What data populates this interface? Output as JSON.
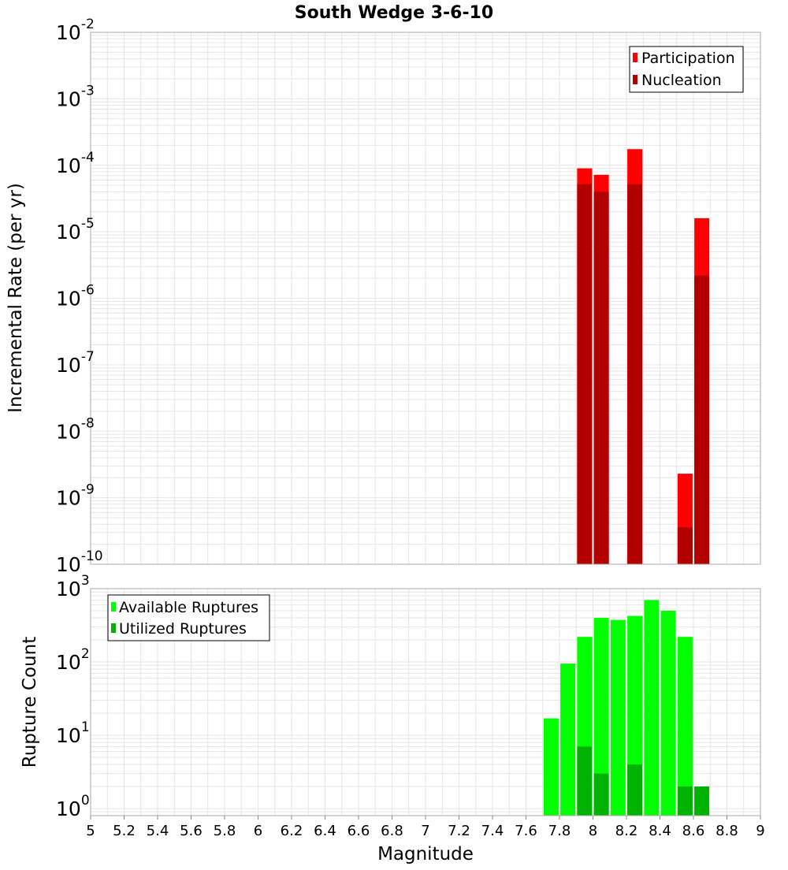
{
  "title": "South Wedge 3-6-10",
  "x_axis": {
    "label": "Magnitude",
    "range": [
      5,
      9
    ],
    "ticks": [
      5,
      5.2,
      5.4,
      5.6,
      5.8,
      6,
      6.2,
      6.4,
      6.6,
      6.8,
      7,
      7.2,
      7.4,
      7.6,
      7.8,
      8,
      8.2,
      8.4,
      8.6,
      8.8,
      9
    ],
    "tick_labels": [
      "5",
      "5.2",
      "5.4",
      "5.6",
      "5.8",
      "6",
      "6.2",
      "6.4",
      "6.6",
      "6.8",
      "7",
      "7.2",
      "7.4",
      "7.6",
      "7.8",
      "8",
      "8.2",
      "8.4",
      "8.6",
      "8.8",
      "9"
    ]
  },
  "colors": {
    "participation": "#ff0000",
    "nucleation": "#b20000",
    "available": "#00ff00",
    "utilized": "#00b200",
    "grid": "#e6e6e6",
    "frame": "#aaaaaa"
  },
  "chart_data": [
    {
      "type": "bar",
      "title": "South Wedge 3-6-10",
      "xlabel": "Magnitude",
      "ylabel": "Incremental Rate (per yr)",
      "yscale": "log",
      "xlim": [
        5,
        9
      ],
      "ylim": [
        1e-10,
        0.01
      ],
      "y_tick_exponents": [
        -10,
        -9,
        -8,
        -7,
        -6,
        -5,
        -4,
        -3,
        -2
      ],
      "legend": {
        "position": "top-right",
        "entries": [
          "Participation",
          "Nucleation"
        ]
      },
      "x": [
        7.95,
        8.05,
        8.25,
        8.55,
        8.65
      ],
      "series": [
        {
          "name": "Participation",
          "values": [
            9e-05,
            7.2e-05,
            0.000175,
            2.3e-09,
            1.6e-05
          ]
        },
        {
          "name": "Nucleation",
          "values": [
            5.2e-05,
            4e-05,
            5.2e-05,
            3.6e-10,
            2.2e-06
          ]
        }
      ]
    },
    {
      "type": "bar",
      "xlabel": "Magnitude",
      "ylabel": "Rupture Count",
      "yscale": "log",
      "xlim": [
        5,
        9
      ],
      "ylim": [
        0.8,
        1000
      ],
      "y_tick_exponents": [
        0,
        1,
        2,
        3
      ],
      "legend": {
        "position": "top-left",
        "entries": [
          "Available Ruptures",
          "Utilized Ruptures"
        ]
      },
      "x": [
        7.75,
        7.85,
        7.95,
        8.05,
        8.15,
        8.25,
        8.35,
        8.45,
        8.55,
        8.65
      ],
      "series": [
        {
          "name": "Available Ruptures",
          "values": [
            17,
            95,
            220,
            400,
            375,
            425,
            700,
            500,
            220,
            0
          ]
        },
        {
          "name": "Utilized Ruptures",
          "values": [
            0,
            0,
            7,
            3,
            0,
            4,
            0,
            0,
            2,
            2
          ]
        }
      ]
    }
  ]
}
